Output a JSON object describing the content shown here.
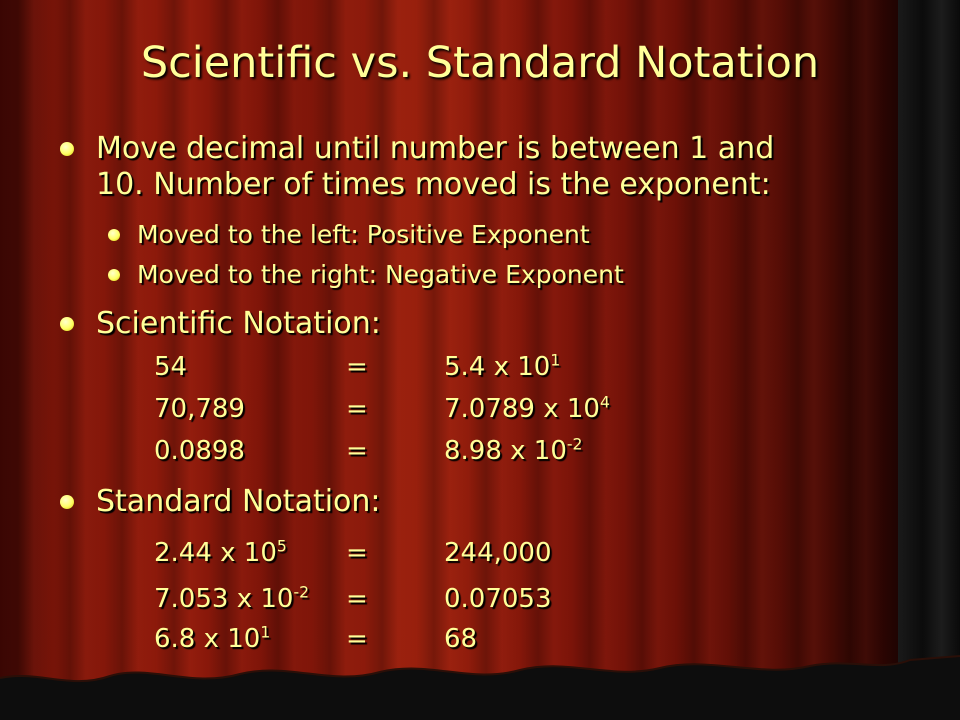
{
  "title": "Scientific vs. Standard Notation",
  "bullets": {
    "move_decimal_line1": "Move decimal until number is between 1 and",
    "move_decimal_line2": "10. Number of times moved is the exponent:",
    "left": "Moved to the left: Positive Exponent",
    "right": "Moved to the right: Negative Exponent",
    "scientific_heading": "Scientific Notation:",
    "standard_heading": "Standard Notation:"
  },
  "scientific_rows": [
    {
      "number": "54",
      "eq": "=",
      "base": "5.4 x 10",
      "exp": "1"
    },
    {
      "number": "70,789",
      "eq": "=",
      "base": "7.0789 x 10",
      "exp": "4"
    },
    {
      "number": "0.0898",
      "eq": "=",
      "base": "8.98 x 10",
      "exp": "-2"
    }
  ],
  "standard_rows": [
    {
      "base": "2.44 x 10",
      "exp": "5",
      "eq": "=",
      "number": "244,000"
    },
    {
      "base": "7.053 x 10",
      "exp": "-2",
      "eq": "=",
      "number": "0.07053"
    },
    {
      "base": "6.8 x 10",
      "exp": "1",
      "eq": "=",
      "number": "68"
    }
  ],
  "colors": {
    "text": "#ffff99",
    "background": "#8f1a0b"
  }
}
